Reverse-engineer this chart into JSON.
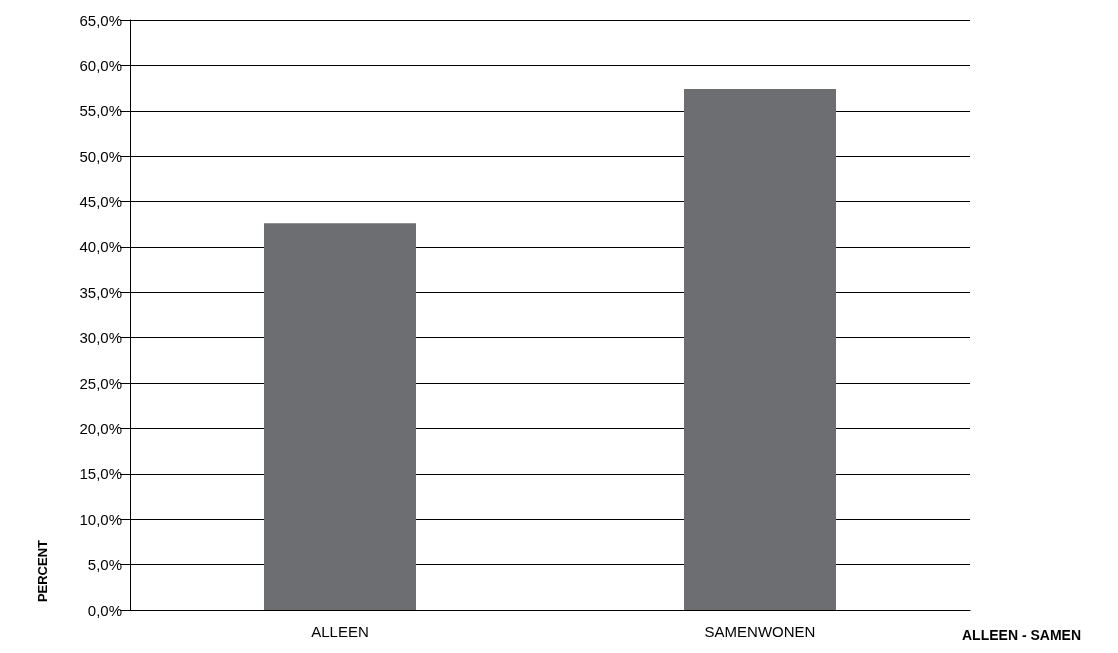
{
  "chart_data": {
    "type": "bar",
    "xlabel": "ALLEEN - SAMEN",
    "ylabel": "PERCENT",
    "categories": [
      "ALLEEN",
      "SAMENWONEN"
    ],
    "values": [
      42.6,
      57.4
    ],
    "color": "#6d6e71",
    "ylim": [
      0,
      65
    ],
    "yticks": [
      {
        "value": 0,
        "label": "0,0%"
      },
      {
        "value": 5,
        "label": "5,0%"
      },
      {
        "value": 10,
        "label": "10,0%"
      },
      {
        "value": 15,
        "label": "15,0%"
      },
      {
        "value": 20,
        "label": "20,0%"
      },
      {
        "value": 25,
        "label": "25,0%"
      },
      {
        "value": 30,
        "label": "30,0%"
      },
      {
        "value": 35,
        "label": "35,0%"
      },
      {
        "value": 40,
        "label": "40,0%"
      },
      {
        "value": 45,
        "label": "45,0%"
      },
      {
        "value": 50,
        "label": "50,0%"
      },
      {
        "value": 55,
        "label": "55,0%"
      },
      {
        "value": 60,
        "label": "60,0%"
      },
      {
        "value": 65,
        "label": "65,0%"
      }
    ],
    "grid": "y"
  }
}
